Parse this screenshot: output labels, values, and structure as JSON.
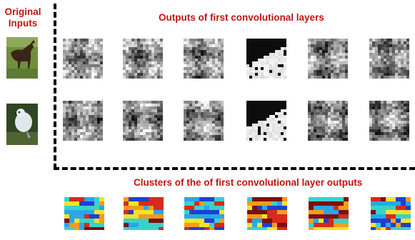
{
  "labels": {
    "original_inputs": "Original Inputs",
    "conv_outputs": "Outputs of first convolutional layers",
    "clusters": "Clusters of the of first convolutional layer outputs"
  },
  "inputs": [
    {
      "name": "horse",
      "colors": [
        "#6b8a3a",
        "#3a2a1e",
        "#8fa65a"
      ]
    },
    {
      "name": "bird",
      "colors": [
        "#2f4a25",
        "#dfe3e8",
        "#5a6e3c"
      ]
    }
  ],
  "feature_map_rows": 2,
  "feature_map_cols": 6,
  "cluster_count": 6,
  "colors": {
    "title": "#c0140f",
    "cluster_palette": [
      "#1f3fd1",
      "#27a7ea",
      "#3ad1c9",
      "#f2e32a",
      "#f59c1a",
      "#d62a1c",
      "#7a1010"
    ]
  }
}
